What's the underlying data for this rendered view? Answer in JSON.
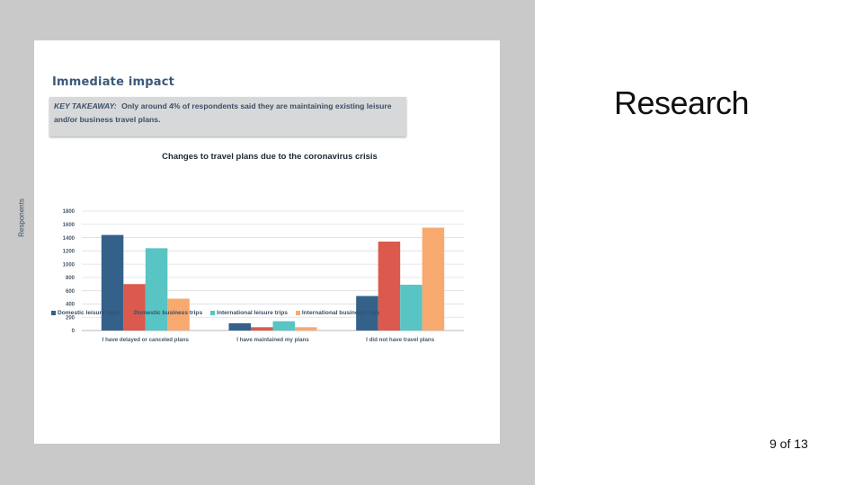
{
  "slide": {
    "title": "Research",
    "page_number": "9 of 13"
  },
  "figure": {
    "heading": "Immediate impact",
    "takeaway_lead": "KEY TAKEAWAY:",
    "takeaway_text": "Only around 4% of respondents said they are maintaining existing leisure and/or business travel plans."
  },
  "colors": {
    "Domestic leisure trips": "#34618a",
    "Domestic business trips": "#db5a4d",
    "International leisure trips": "#58c4c4",
    "International business trips": "#f7a970"
  },
  "chart_data": {
    "type": "bar",
    "title": "Changes to travel plans due to the coronavirus crisis",
    "xlabel": "",
    "ylabel": "Responents",
    "ylim": [
      0,
      1800
    ],
    "yticks": [
      0,
      200,
      400,
      600,
      800,
      1000,
      1200,
      1400,
      1600,
      1800
    ],
    "grid": true,
    "legend_position": "bottom",
    "categories": [
      "I have delayed or canceled plans",
      "I have maintained my plans",
      "I did not have travel plans"
    ],
    "series": [
      {
        "name": "Domestic leisure trips",
        "values": [
          1440,
          110,
          520
        ]
      },
      {
        "name": "Domestic business trips",
        "values": [
          700,
          50,
          1340
        ]
      },
      {
        "name": "International leisure trips",
        "values": [
          1240,
          140,
          690
        ]
      },
      {
        "name": "International business trips",
        "values": [
          480,
          50,
          1550
        ]
      }
    ]
  }
}
